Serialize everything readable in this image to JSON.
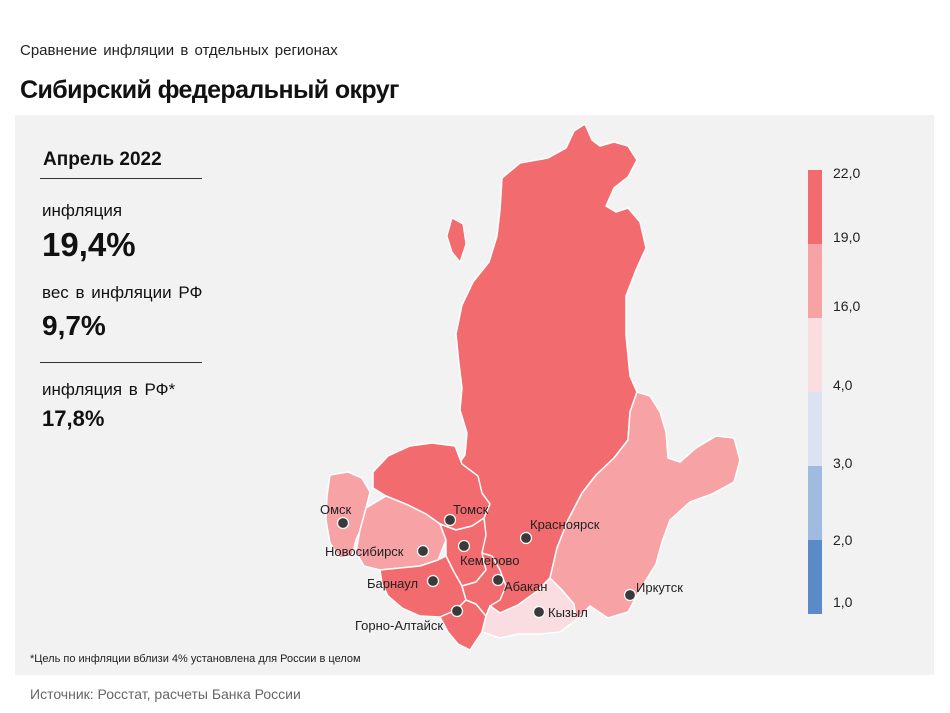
{
  "header": {
    "subtitle": "Сравнение  инфляции  в отдельных  регионах",
    "title": "Сибирский федеральный округ"
  },
  "stats": {
    "period": "Апрель 2022",
    "inflation_label": "инфляция",
    "inflation_value": "19,4%",
    "weight_label": "вес в инфляции  РФ",
    "weight_value": "9,7%",
    "rf_label": "инфляция  в РФ*",
    "rf_value": "17,8%"
  },
  "legend": {
    "ticks": [
      "22,0",
      "19,0",
      "16,0",
      "4,0",
      "3,0",
      "2,0",
      "1,0"
    ],
    "bands": [
      {
        "from": 19.0,
        "to": 22.0,
        "color": "#f26b6e"
      },
      {
        "from": 16.0,
        "to": 19.0,
        "color": "#f7a3a6"
      },
      {
        "from": 4.0,
        "to": 16.0,
        "color": "#f9dde0"
      },
      {
        "from": 3.0,
        "to": 4.0,
        "color": "#dbe3f3"
      },
      {
        "from": 2.0,
        "to": 3.0,
        "color": "#9fbbe0"
      },
      {
        "from": 1.0,
        "to": 2.0,
        "color": "#5b8ac9"
      }
    ]
  },
  "regions": [
    {
      "name": "Красноярский край",
      "class": "high",
      "color": "#f26b6e"
    },
    {
      "name": "Томская область",
      "class": "high",
      "color": "#f26b6e"
    },
    {
      "name": "Кемеровская область",
      "class": "high",
      "color": "#f26b6e"
    },
    {
      "name": "Алтайский край",
      "class": "high",
      "color": "#f26b6e"
    },
    {
      "name": "Республика Алтай",
      "class": "high",
      "color": "#f26b6e"
    },
    {
      "name": "Республика Хакасия",
      "class": "high",
      "color": "#f26b6e"
    },
    {
      "name": "Омская область",
      "class": "mid",
      "color": "#f7a3a6"
    },
    {
      "name": "Новосибирская область",
      "class": "mid",
      "color": "#f7a3a6"
    },
    {
      "name": "Иркутская область",
      "class": "mid",
      "color": "#f7a3a6"
    },
    {
      "name": "Республика Тыва",
      "class": "low",
      "color": "#f9dde0"
    }
  ],
  "cities": [
    "Омск",
    "Томск",
    "Новосибирск",
    "Кемерово",
    "Красноярск",
    "Барнаул",
    "Абакан",
    "Иркутск",
    "Горно-Алтайск",
    "Кызыл"
  ],
  "footnote": "*Цель по инфляции вблизи 4% установлена для России в целом",
  "source": "Источник: Росстат, расчеты Банка России"
}
